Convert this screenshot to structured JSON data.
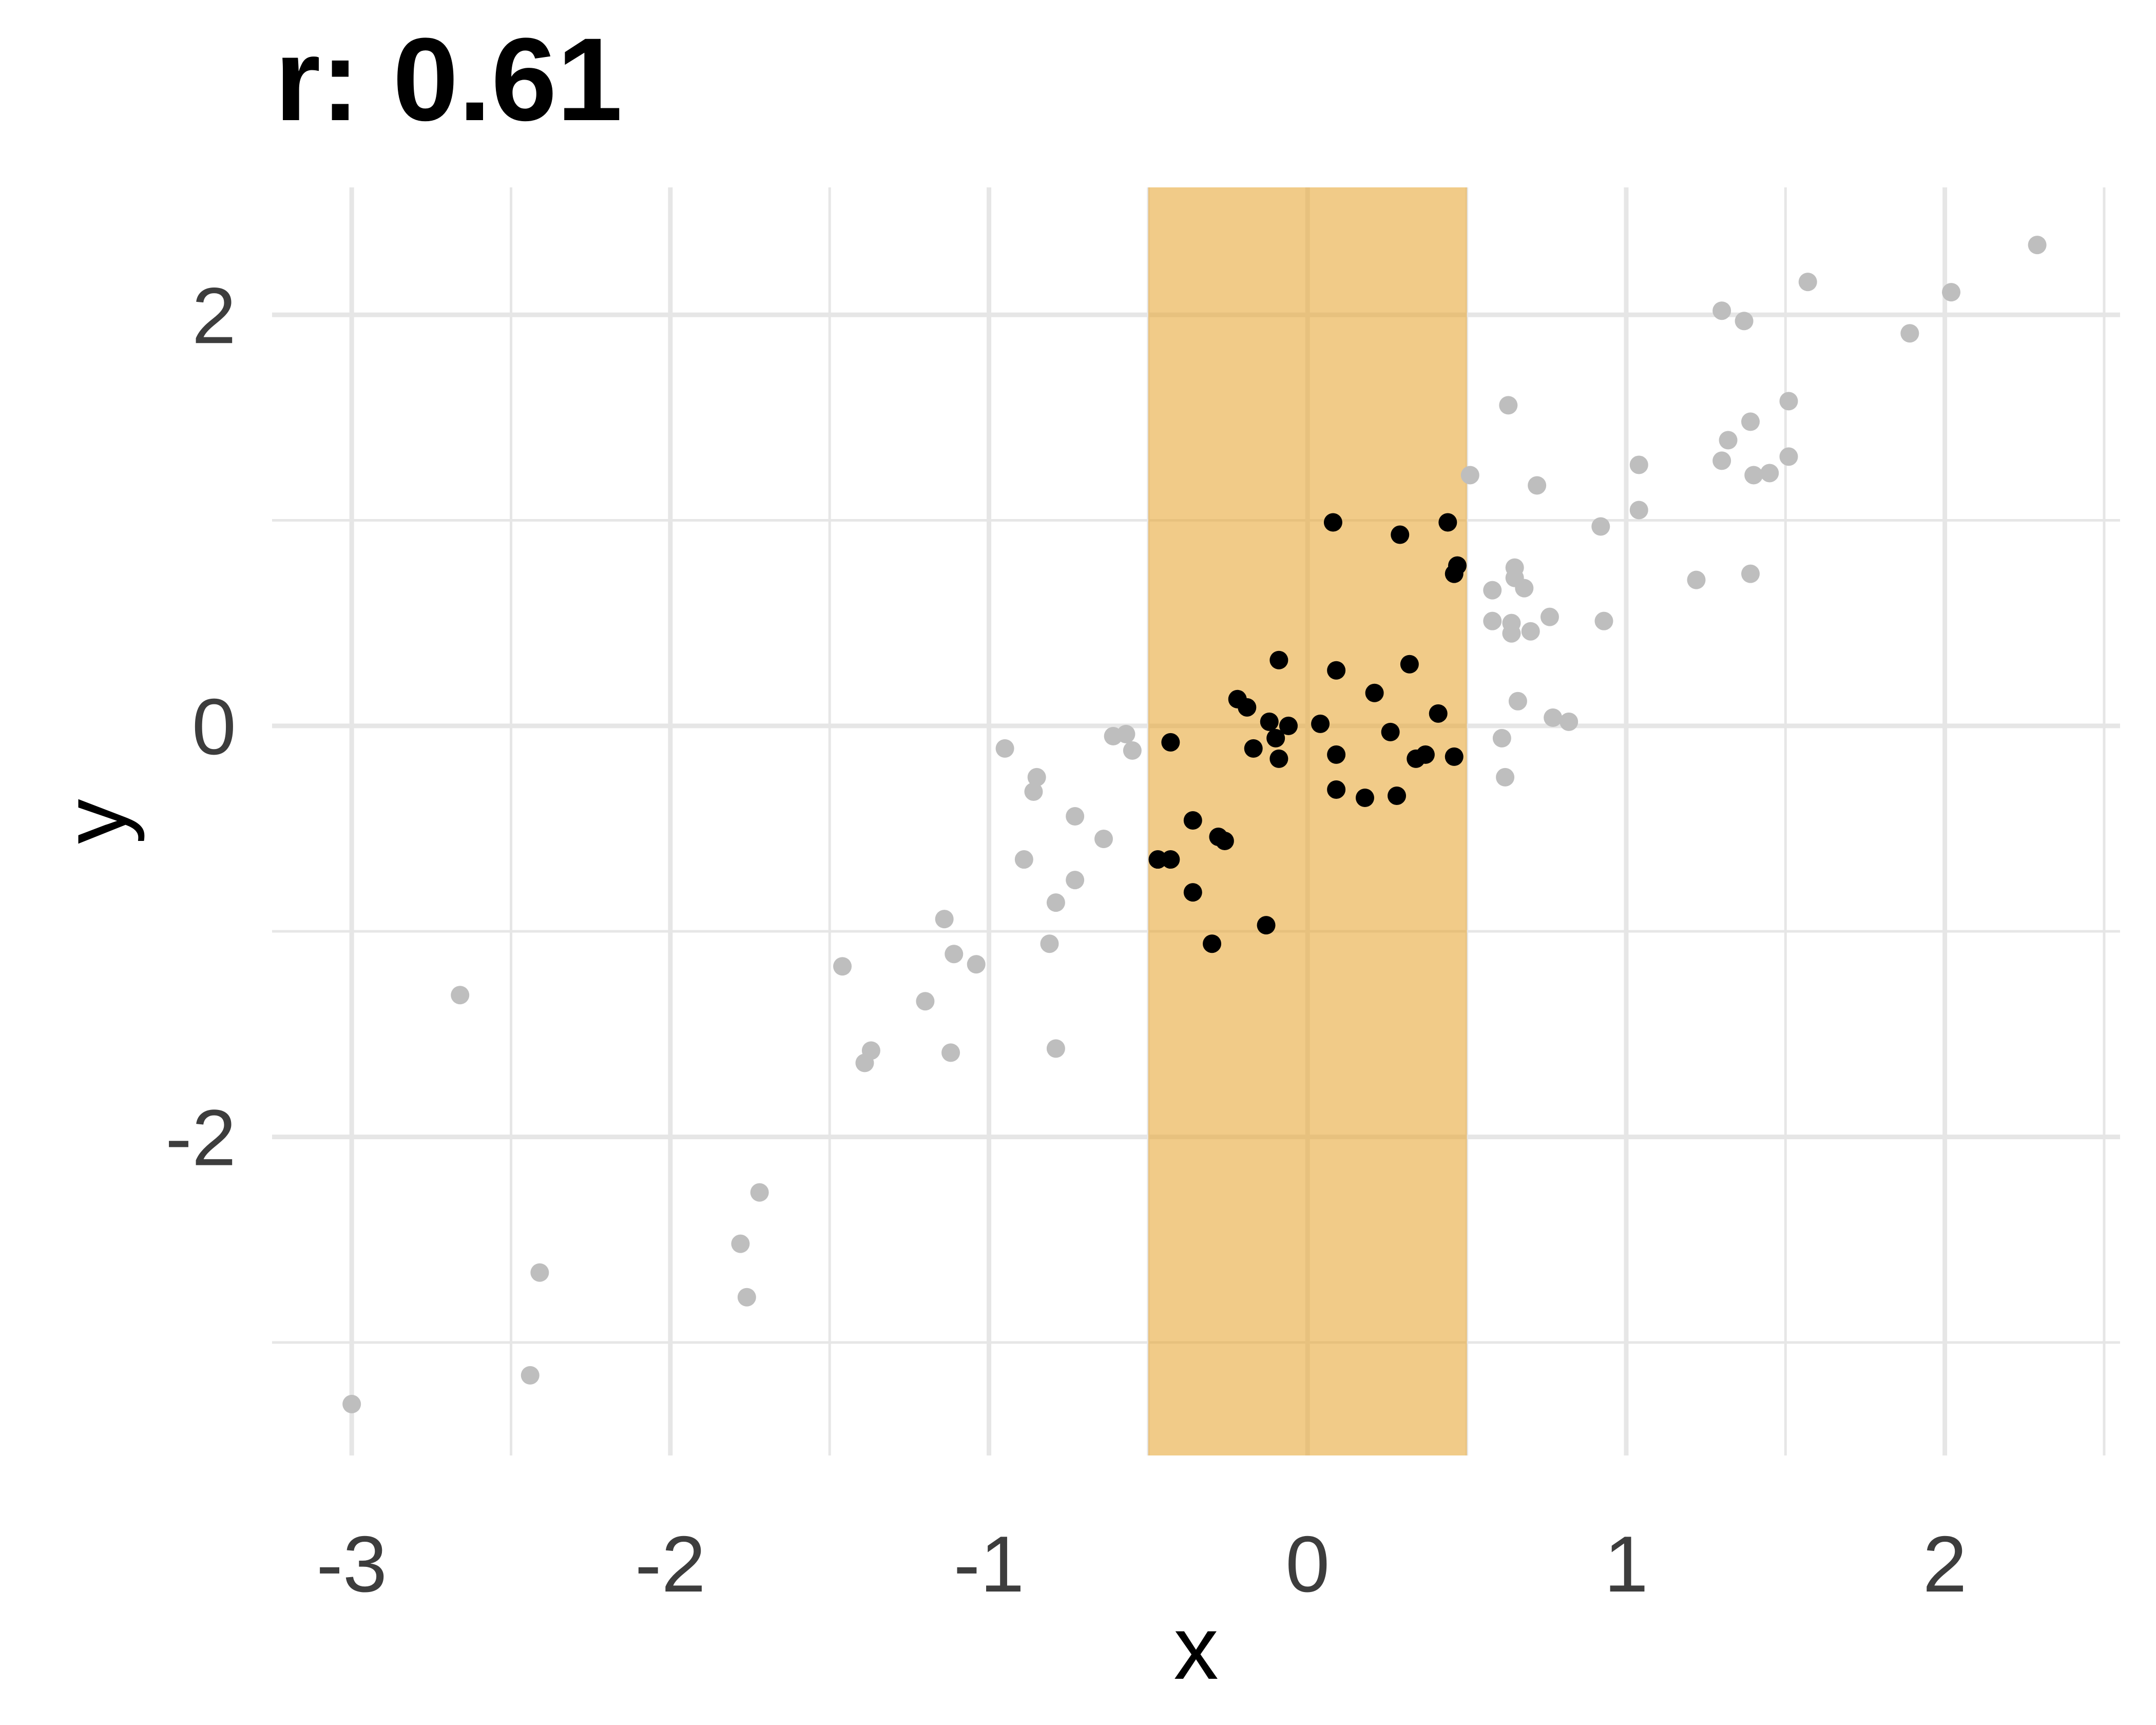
{
  "chart_data": {
    "type": "scatter",
    "title": "r: 0.61",
    "xlabel": "x",
    "ylabel": "y",
    "xlim": [
      -3.25,
      2.55
    ],
    "ylim": [
      -3.55,
      2.62
    ],
    "x_ticks": [
      -3,
      -2,
      -1,
      0,
      1,
      2
    ],
    "y_ticks": [
      -2,
      0,
      2
    ],
    "x_minor_grid": [
      -2.5,
      -1.5,
      -0.5,
      0.5,
      1.5,
      2.5
    ],
    "y_minor_grid": [
      -3,
      -1,
      1
    ],
    "grid": true,
    "highlight_band": {
      "xmin": -0.5,
      "xmax": 0.5,
      "color": "#E8A838"
    },
    "colors": {
      "highlighted": "#000000",
      "background": "#BEBEBE",
      "grid": "#E6E6E6"
    },
    "series": [
      {
        "highlighted": false,
        "points": [
          [
            -3.0,
            -3.3
          ],
          [
            -2.66,
            -1.31
          ],
          [
            -2.44,
            -3.16
          ],
          [
            -2.41,
            -2.66
          ],
          [
            -1.78,
            -2.52
          ],
          [
            -1.76,
            -2.78
          ],
          [
            -1.72,
            -2.27
          ],
          [
            -1.46,
            -1.17
          ],
          [
            -1.39,
            -1.64
          ],
          [
            -1.37,
            -1.58
          ],
          [
            -1.2,
            -1.34
          ],
          [
            -1.14,
            -0.94
          ],
          [
            -1.12,
            -1.59
          ],
          [
            -1.11,
            -1.11
          ],
          [
            -1.04,
            -1.16
          ],
          [
            -0.95,
            -0.11
          ],
          [
            -0.89,
            -0.65
          ],
          [
            -0.86,
            -0.32
          ],
          [
            -0.85,
            -0.25
          ],
          [
            -0.81,
            -1.06
          ],
          [
            -0.79,
            -0.86
          ],
          [
            -0.79,
            -1.57
          ],
          [
            -0.73,
            -0.44
          ],
          [
            -0.73,
            -0.75
          ],
          [
            -0.64,
            -0.55
          ],
          [
            -0.61,
            -0.05
          ],
          [
            -0.57,
            -0.04
          ],
          [
            -0.55,
            -0.12
          ],
          [
            0.51,
            1.22
          ],
          [
            0.58,
            0.51
          ],
          [
            0.58,
            0.66
          ],
          [
            0.61,
            -0.06
          ],
          [
            0.62,
            -0.25
          ],
          [
            0.63,
            1.56
          ],
          [
            0.64,
            0.45
          ],
          [
            0.64,
            0.5
          ],
          [
            0.65,
            0.77
          ],
          [
            0.65,
            0.72
          ],
          [
            0.66,
            0.12
          ],
          [
            0.68,
            0.67
          ],
          [
            0.7,
            0.46
          ],
          [
            0.72,
            1.17
          ],
          [
            0.76,
            0.53
          ],
          [
            0.77,
            0.04
          ],
          [
            0.82,
            0.02
          ],
          [
            0.92,
            0.97
          ],
          [
            0.93,
            0.51
          ],
          [
            1.04,
            1.05
          ],
          [
            1.04,
            1.27
          ],
          [
            1.22,
            0.71
          ],
          [
            1.3,
            1.29
          ],
          [
            1.3,
            2.02
          ],
          [
            1.32,
            1.39
          ],
          [
            1.37,
            1.97
          ],
          [
            1.39,
            1.48
          ],
          [
            1.39,
            0.74
          ],
          [
            1.4,
            1.22
          ],
          [
            1.45,
            1.23
          ],
          [
            1.51,
            1.31
          ],
          [
            1.51,
            1.58
          ],
          [
            1.57,
            2.16
          ],
          [
            1.89,
            1.91
          ],
          [
            2.02,
            2.11
          ],
          [
            2.29,
            2.34
          ]
        ]
      },
      {
        "highlighted": true,
        "points": [
          [
            -0.47,
            -0.65
          ],
          [
            -0.43,
            -0.08
          ],
          [
            -0.43,
            -0.65
          ],
          [
            -0.36,
            -0.46
          ],
          [
            -0.36,
            -0.81
          ],
          [
            -0.3,
            -1.06
          ],
          [
            -0.28,
            -0.54
          ],
          [
            -0.26,
            -0.56
          ],
          [
            -0.22,
            0.13
          ],
          [
            -0.19,
            0.09
          ],
          [
            -0.17,
            -0.11
          ],
          [
            -0.13,
            -0.97
          ],
          [
            -0.12,
            0.02
          ],
          [
            -0.1,
            -0.06
          ],
          [
            -0.09,
            -0.16
          ],
          [
            -0.09,
            0.32
          ],
          [
            -0.06,
            0.0
          ],
          [
            0.04,
            0.01
          ],
          [
            0.08,
            0.99
          ],
          [
            0.09,
            -0.14
          ],
          [
            0.09,
            -0.31
          ],
          [
            0.09,
            0.27
          ],
          [
            0.18,
            -0.35
          ],
          [
            0.21,
            0.16
          ],
          [
            0.26,
            -0.03
          ],
          [
            0.28,
            -0.34
          ],
          [
            0.29,
            0.93
          ],
          [
            0.32,
            0.3
          ],
          [
            0.34,
            -0.16
          ],
          [
            0.37,
            -0.14
          ],
          [
            0.41,
            0.06
          ],
          [
            0.44,
            0.99
          ],
          [
            0.46,
            0.74
          ],
          [
            0.46,
            -0.15
          ],
          [
            0.47,
            0.78
          ]
        ]
      }
    ]
  }
}
